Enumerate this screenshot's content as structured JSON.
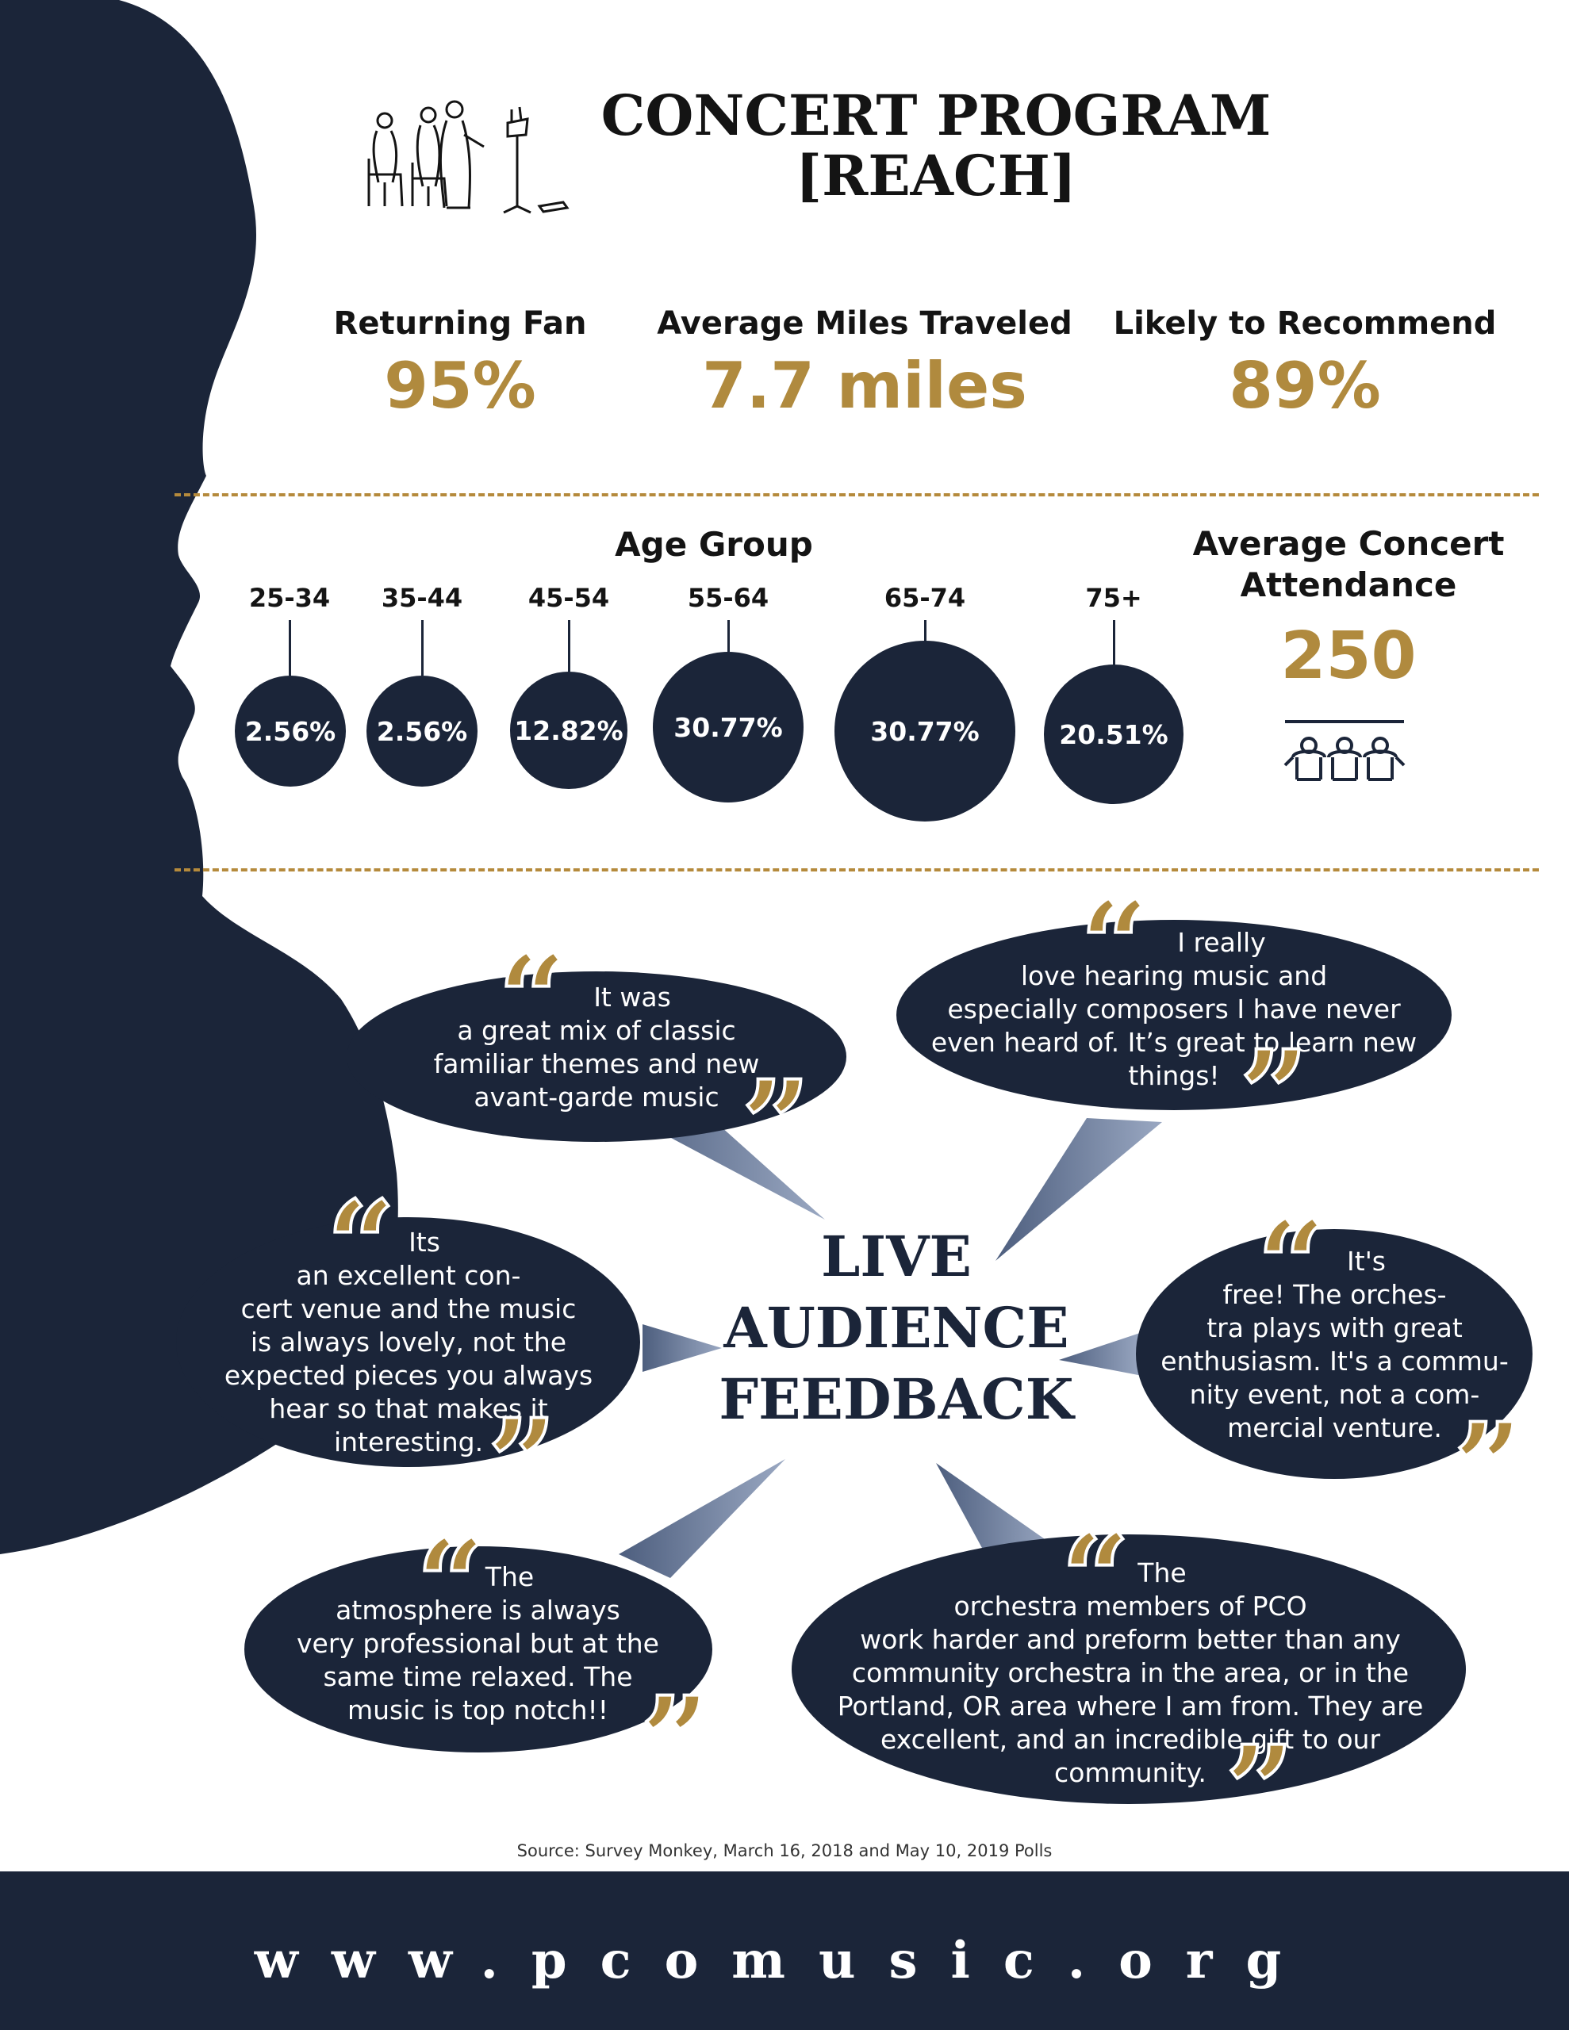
{
  "header": {
    "title_line1": "CONCERT PROGRAM",
    "title_line2": "[REACH]"
  },
  "stats": [
    {
      "label": "Returning Fan",
      "value": "95%"
    },
    {
      "label": "Average Miles Traveled",
      "value": "7.7 miles"
    },
    {
      "label": "Likely to Recommend",
      "value": "89%"
    }
  ],
  "age_group": {
    "title": "Age Group",
    "groups": [
      {
        "label": "25-34",
        "value": "2.56%"
      },
      {
        "label": "35-44",
        "value": "2.56%"
      },
      {
        "label": "45-54",
        "value": "12.82%"
      },
      {
        "label": "55-64",
        "value": "30.77%"
      },
      {
        "label": "65-74",
        "value": "30.77%"
      },
      {
        "label": "75+",
        "value": "20.51%"
      }
    ]
  },
  "attendance": {
    "label_line1": "Average Concert",
    "label_line2": "Attendance",
    "value": "250"
  },
  "feedback": {
    "title_line1": "LIVE",
    "title_line2": "AUDIENCE",
    "title_line3": "FEEDBACK",
    "quotes": [
      {
        "lines": [
          "It was",
          "a great mix of classic",
          "familiar themes and new",
          "avant-garde music"
        ]
      },
      {
        "lines": [
          "I really",
          "love hearing music and",
          "especially composers I have never",
          "even heard of. It’s great to learn new",
          "things!"
        ]
      },
      {
        "lines": [
          "Its",
          "an excellent con-",
          "cert venue and the music",
          "is always lovely, not the",
          "expected pieces you always",
          "hear so that makes it",
          "interesting."
        ]
      },
      {
        "lines": [
          "It's",
          "free! The orches-",
          "tra plays with great",
          "enthusiasm. It's a commu-",
          "nity event, not a com-",
          "mercial venture."
        ]
      },
      {
        "lines": [
          "The",
          "atmosphere is always",
          "very professional but at the",
          "same time relaxed. The",
          "music is top notch!!"
        ]
      },
      {
        "lines": [
          "The",
          "orchestra members of PCO",
          "work harder and preform better than any",
          "community orchestra in the area, or in the",
          "Portland, OR area where I am from. They are",
          "excellent, and an incredible gift to our",
          "community."
        ]
      }
    ]
  },
  "source": "Source: Survey Monkey, March 16, 2018 and May 10, 2019 Polls",
  "footer": {
    "url": "www.pcomusic.org"
  },
  "colors": {
    "navy": "#1b2539",
    "gold": "#b08a3e"
  },
  "icons": [
    "musicians-illustration",
    "audience-seats-icon",
    "quote-open-icon",
    "quote-close-icon"
  ]
}
